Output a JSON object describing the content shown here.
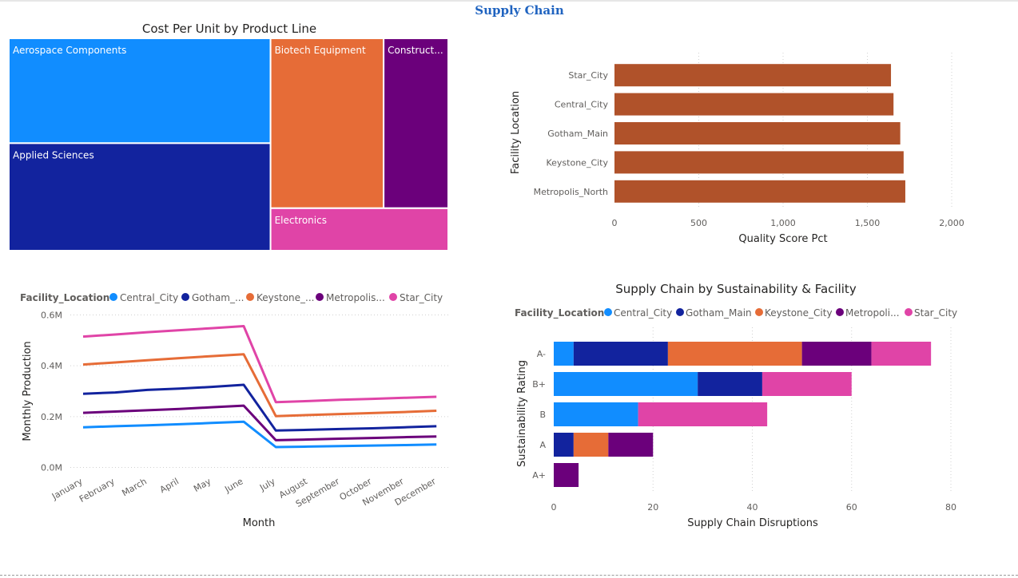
{
  "page": {
    "title": "Supply Chain"
  },
  "colors": {
    "Central_City": "#118DFF",
    "Gotham_Main": "#12239E",
    "Keystone_City": "#E66C37",
    "Metropolis_North": "#6B007B",
    "Star_City": "#E044A7",
    "quality_bar": "#B0522A"
  },
  "chart_data": [
    {
      "id": "treemap",
      "type": "treemap",
      "title": "Cost Per Unit by Product Line",
      "items": [
        {
          "label": "Aerospace Components",
          "value": 40,
          "color": "#118DFF"
        },
        {
          "label": "Applied Sciences",
          "value": 41,
          "color": "#12239E"
        },
        {
          "label": "Biotech Equipment",
          "value": 28,
          "color": "#E66C37"
        },
        {
          "label": "Construct...",
          "value": 16,
          "color": "#6B007B"
        },
        {
          "label": "Electronics",
          "value": 11,
          "color": "#E044A7"
        }
      ]
    },
    {
      "id": "quality",
      "type": "bar",
      "orientation": "horizontal",
      "title": "",
      "categories": [
        "Star_City",
        "Central_City",
        "Gotham_Main",
        "Keystone_City",
        "Metropolis_North"
      ],
      "values": [
        1640,
        1655,
        1695,
        1715,
        1725
      ],
      "xlabel": "Quality Score Pct",
      "ylabel": "Facility Location",
      "xlim": [
        0,
        2000
      ],
      "xticks": [
        0,
        500,
        1000,
        1500,
        2000
      ],
      "xtick_labels": [
        "0",
        "500",
        "1,000",
        "1,500",
        "2,000"
      ],
      "grid": true
    },
    {
      "id": "production",
      "type": "line",
      "title": "",
      "legend_title": "Facility_Location",
      "legend_labels": [
        "Central_City",
        "Gotham_...",
        "Keystone_...",
        "Metropolis...",
        "Star_City"
      ],
      "categories": [
        "January",
        "February",
        "March",
        "April",
        "May",
        "June",
        "July",
        "August",
        "September",
        "October",
        "November",
        "December"
      ],
      "series": [
        {
          "name": "Central_City",
          "values": [
            0.158,
            0.162,
            0.166,
            0.17,
            0.175,
            0.18,
            0.08,
            0.082,
            0.084,
            0.086,
            0.088,
            0.09
          ]
        },
        {
          "name": "Gotham_Main",
          "values": [
            0.29,
            0.295,
            0.305,
            0.31,
            0.317,
            0.325,
            0.145,
            0.148,
            0.151,
            0.154,
            0.158,
            0.162
          ]
        },
        {
          "name": "Keystone_City",
          "values": [
            0.405,
            0.413,
            0.422,
            0.43,
            0.438,
            0.445,
            0.202,
            0.206,
            0.21,
            0.214,
            0.218,
            0.223
          ]
        },
        {
          "name": "Metropolis_North",
          "values": [
            0.215,
            0.22,
            0.225,
            0.23,
            0.237,
            0.243,
            0.107,
            0.11,
            0.113,
            0.116,
            0.119,
            0.122
          ]
        },
        {
          "name": "Star_City",
          "values": [
            0.515,
            0.523,
            0.532,
            0.54,
            0.548,
            0.556,
            0.257,
            0.261,
            0.266,
            0.27,
            0.274,
            0.278
          ]
        }
      ],
      "xlabel": "Month",
      "ylabel": "Monthly Production",
      "ylim": [
        0,
        0.6
      ],
      "yticks": [
        0,
        0.2,
        0.4,
        0.6
      ],
      "ytick_labels": [
        "0.0M",
        "0.2M",
        "0.4M",
        "0.6M"
      ],
      "grid": true,
      "legend_position": "top"
    },
    {
      "id": "disruptions",
      "type": "bar",
      "orientation": "horizontal",
      "stacked": true,
      "title": "Supply Chain by Sustainability & Facility",
      "legend_title": "Facility_Location",
      "legend_labels": [
        "Central_City",
        "Gotham_Main",
        "Keystone_City",
        "Metropoli...",
        "Star_City"
      ],
      "categories": [
        "A-",
        "B+",
        "B",
        "A",
        "A+"
      ],
      "series": [
        {
          "name": "Central_City",
          "values": [
            4,
            29,
            17,
            0,
            0
          ]
        },
        {
          "name": "Gotham_Main",
          "values": [
            19,
            13,
            0,
            4,
            0
          ]
        },
        {
          "name": "Keystone_City",
          "values": [
            27,
            0,
            0,
            7,
            0
          ]
        },
        {
          "name": "Metropolis_North",
          "values": [
            14,
            0,
            0,
            9,
            5
          ]
        },
        {
          "name": "Star_City",
          "values": [
            12,
            18,
            26,
            0,
            0
          ]
        }
      ],
      "xlabel": "Supply Chain Disruptions",
      "ylabel": "Sustainability Rating",
      "xlim": [
        0,
        80
      ],
      "xticks": [
        0,
        20,
        40,
        60,
        80
      ],
      "grid": true,
      "legend_position": "top"
    }
  ]
}
